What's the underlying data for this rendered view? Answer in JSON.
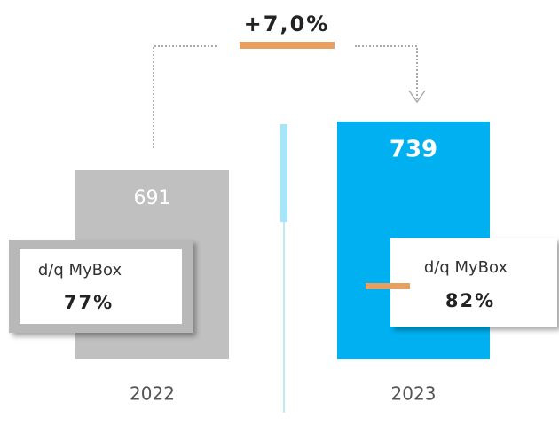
{
  "chart_data": {
    "type": "bar",
    "annotation": "+7,0%",
    "categories": [
      "2022",
      "2023"
    ],
    "values": [
      691,
      739
    ],
    "colors": [
      "#c0c0c0",
      "#00b0f0"
    ],
    "ylim": [
      505,
      739
    ],
    "share": {
      "label": "d/q MyBox",
      "values": [
        77,
        82
      ],
      "value_labels": [
        "77%",
        "82%"
      ]
    }
  }
}
